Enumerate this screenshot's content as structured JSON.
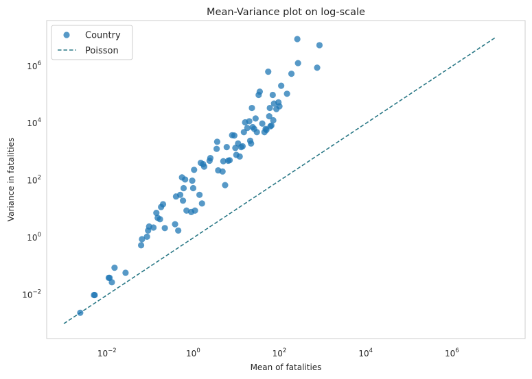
{
  "chart_data": {
    "type": "scatter",
    "title": "Mean-Variance plot on log-scale",
    "xlabel": "Mean of fatalities",
    "ylabel": "Variance in fatalities",
    "xscale": "log",
    "yscale": "log",
    "xlim": [
      0.0004,
      50000000
    ],
    "ylim": [
      0.0003,
      40000000
    ],
    "grid": false,
    "legend_position": "top-left",
    "x_ticks": [
      {
        "base": "10",
        "exp": "−2",
        "value": 0.01
      },
      {
        "base": "10",
        "exp": "0",
        "value": 1
      },
      {
        "base": "10",
        "exp": "2",
        "value": 100
      },
      {
        "base": "10",
        "exp": "4",
        "value": 10000
      },
      {
        "base": "10",
        "exp": "6",
        "value": 1000000
      }
    ],
    "y_ticks": [
      {
        "base": "10",
        "exp": "−2",
        "value": 0.01
      },
      {
        "base": "10",
        "exp": "0",
        "value": 1
      },
      {
        "base": "10",
        "exp": "2",
        "value": 100
      },
      {
        "base": "10",
        "exp": "4",
        "value": 10000
      },
      {
        "base": "10",
        "exp": "6",
        "value": 1000000
      }
    ],
    "series": [
      {
        "name": "Country",
        "kind": "scatter",
        "color": "#1f77b4",
        "points": [
          [
            0.0024,
            0.0024
          ],
          [
            0.005,
            0.01
          ],
          [
            0.0052,
            0.01
          ],
          [
            0.011,
            0.04
          ],
          [
            0.0115,
            0.04
          ],
          [
            0.013,
            0.028
          ],
          [
            0.015,
            0.09
          ],
          [
            0.027,
            0.06
          ],
          [
            0.062,
            0.55
          ],
          [
            0.065,
            0.9
          ],
          [
            0.085,
            1.1
          ],
          [
            0.09,
            1.8
          ],
          [
            0.095,
            2.5
          ],
          [
            0.12,
            2.3
          ],
          [
            0.14,
            7.5
          ],
          [
            0.15,
            5.0
          ],
          [
            0.17,
            4.5
          ],
          [
            0.18,
            12
          ],
          [
            0.2,
            15
          ],
          [
            0.22,
            2.2
          ],
          [
            0.38,
            3.0
          ],
          [
            0.4,
            28
          ],
          [
            0.45,
            1.8
          ],
          [
            0.5,
            32
          ],
          [
            0.55,
            130
          ],
          [
            0.58,
            20
          ],
          [
            0.6,
            55
          ],
          [
            0.65,
            110
          ],
          [
            0.7,
            9
          ],
          [
            0.9,
            8
          ],
          [
            0.95,
            100
          ],
          [
            1.0,
            55
          ],
          [
            1.05,
            240
          ],
          [
            1.1,
            9
          ],
          [
            1.4,
            32
          ],
          [
            1.5,
            420
          ],
          [
            1.6,
            16
          ],
          [
            1.7,
            380
          ],
          [
            1.8,
            310
          ],
          [
            2.4,
            500
          ],
          [
            2.5,
            620
          ],
          [
            3.5,
            1300
          ],
          [
            3.6,
            2300
          ],
          [
            3.8,
            230
          ],
          [
            4.8,
            210
          ],
          [
            5.0,
            480
          ],
          [
            5.5,
            70
          ],
          [
            6.0,
            1500
          ],
          [
            6.5,
            500
          ],
          [
            7.0,
            520
          ],
          [
            8.0,
            3900
          ],
          [
            9.0,
            3800
          ],
          [
            9.5,
            1400
          ],
          [
            10,
            800
          ],
          [
            11,
            2000
          ],
          [
            12,
            700
          ],
          [
            13,
            1500
          ],
          [
            14,
            1600
          ],
          [
            15,
            5000
          ],
          [
            16,
            11000
          ],
          [
            18,
            7000
          ],
          [
            20,
            12000
          ],
          [
            21,
            2500
          ],
          [
            22,
            2000
          ],
          [
            23,
            35000
          ],
          [
            24,
            7500
          ],
          [
            26,
            6500
          ],
          [
            28,
            15000
          ],
          [
            30,
            5000
          ],
          [
            33,
            100000
          ],
          [
            35,
            130000
          ],
          [
            40,
            10000
          ],
          [
            45,
            5000
          ],
          [
            48,
            6500
          ],
          [
            50,
            6000
          ],
          [
            55,
            650000
          ],
          [
            58,
            18000
          ],
          [
            60,
            35000
          ],
          [
            62,
            8000
          ],
          [
            65,
            8500
          ],
          [
            70,
            100000
          ],
          [
            72,
            13000
          ],
          [
            75,
            50000
          ],
          [
            85,
            32000
          ],
          [
            95,
            55000
          ],
          [
            100,
            40000
          ],
          [
            110,
            210000
          ],
          [
            150,
            110000
          ],
          [
            190,
            550000
          ],
          [
            260,
            9000000
          ],
          [
            270,
            1300000
          ],
          [
            750,
            900000
          ],
          [
            850,
            5500000
          ]
        ]
      },
      {
        "name": "Poisson",
        "kind": "line",
        "style": "dashed",
        "color": "#2a7886",
        "points": [
          [
            0.001,
            0.001
          ],
          [
            10000000,
            10000000
          ]
        ]
      }
    ]
  }
}
